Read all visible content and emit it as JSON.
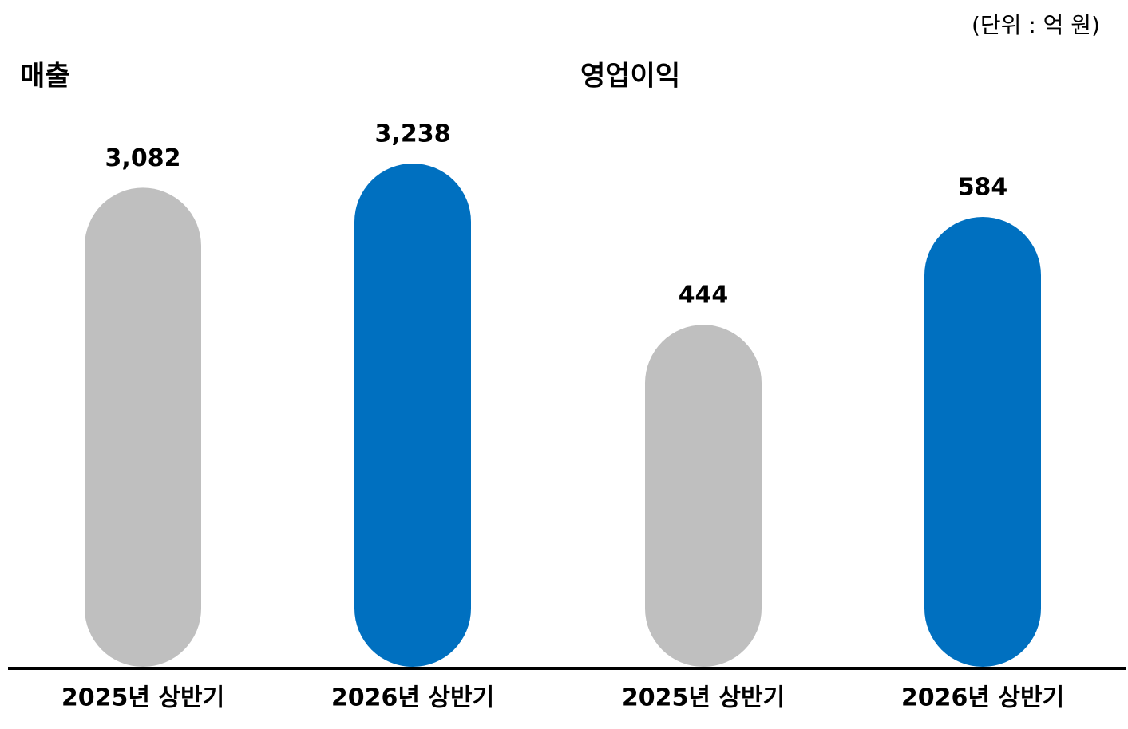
{
  "unit": "(단위 : 억 원)",
  "chart_data": [
    {
      "type": "bar",
      "title": "매출",
      "categories": [
        "2025년 상반기",
        "2026년 상반기"
      ],
      "values": [
        3082,
        3238
      ],
      "value_labels": [
        "3,082",
        "3,238"
      ],
      "colors": [
        "#bfbfbf",
        "#0070c0"
      ]
    },
    {
      "type": "bar",
      "title": "영업이익",
      "categories": [
        "2025년 상반기",
        "2026년 상반기"
      ],
      "values": [
        444,
        584
      ],
      "value_labels": [
        "444",
        "584"
      ],
      "colors": [
        "#bfbfbf",
        "#0070c0"
      ]
    }
  ]
}
